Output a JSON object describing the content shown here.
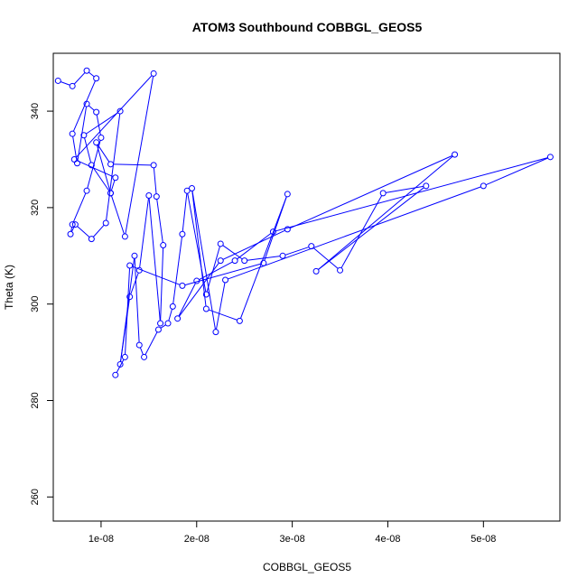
{
  "chart_data": {
    "type": "line",
    "title": "ATOM3 Southbound COBBGL_GEOS5",
    "xlabel": "COBBGL_GEOS5",
    "ylabel": "Theta (K)",
    "xlim": [
      5e-09,
      5.8e-08
    ],
    "ylim": [
      255,
      352
    ],
    "xticks": [
      1e-08,
      2e-08,
      3e-08,
      4e-08,
      5e-08
    ],
    "xtick_labels": [
      "1e-08",
      "2e-08",
      "3e-08",
      "4e-08",
      "5e-08"
    ],
    "yticks": [
      260,
      280,
      300,
      320,
      340
    ],
    "ytick_labels": [
      "260",
      "280",
      "300",
      "320",
      "340"
    ],
    "grid": false,
    "legend": "none",
    "series": [
      {
        "color": "#0000ff",
        "marker": "open-circle",
        "x": [
          5.5e-09,
          7e-09,
          8.5e-09,
          9.5e-09,
          7e-09,
          7.5e-09,
          8.5e-09,
          9.5e-09,
          1e-08,
          8.5e-09,
          7e-09,
          6.8e-09,
          7.3e-09,
          9e-09,
          1.05e-08,
          1.2e-08,
          8.2e-09,
          9e-09,
          1.1e-08,
          1.15e-08,
          7.2e-09,
          1.55e-08,
          1.25e-08,
          1.1e-08,
          9.5e-09,
          1.1e-08,
          1.55e-08,
          1.58e-08,
          1.65e-08,
          1.62e-08,
          1.5e-08,
          1.4e-08,
          1.3e-08,
          1.2e-08,
          1.35e-08,
          1.4e-08,
          1.45e-08,
          1.6e-08,
          1.7e-08,
          1.75e-08,
          1.85e-08,
          1.9e-08,
          2.1e-08,
          2.25e-08,
          2.5e-08,
          2.9e-08,
          3.2e-08,
          3.5e-08,
          3.95e-08,
          4.4e-08,
          3.25e-08,
          4.7e-08,
          2.95e-08,
          2.25e-08,
          1.8e-08,
          2e-08,
          2.4e-08,
          2.8e-08,
          5.7e-08,
          5e-08,
          2.3e-08,
          2.2e-08,
          1.95e-08,
          2.1e-08,
          2.45e-08,
          2.95e-08,
          2.7e-08,
          1.85e-08,
          1.3e-08,
          1.25e-08,
          1.15e-08
        ],
        "y": [
          346.3,
          345.2,
          348.4,
          346.8,
          335.3,
          329.2,
          341.5,
          339.8,
          334.5,
          323.5,
          316.5,
          314.5,
          316.5,
          313.5,
          316.8,
          340.0,
          335.0,
          328.8,
          323.0,
          326.2,
          330.0,
          347.8,
          314.0,
          323.0,
          333.5,
          329.0,
          328.8,
          322.3,
          312.2,
          296.0,
          322.5,
          307.0,
          301.5,
          287.5,
          310.0,
          291.5,
          289.0,
          294.7,
          296.0,
          299.5,
          314.5,
          323.5,
          302.0,
          312.5,
          309.0,
          310.0,
          312.0,
          307.0,
          323.0,
          324.5,
          306.8,
          331.0,
          315.5,
          309.0,
          297.0,
          304.8,
          309.0,
          315.0,
          330.5,
          324.5,
          305.0,
          294.2,
          324.0,
          299.0,
          296.5,
          322.8,
          308.5,
          303.8,
          308.0,
          289.0,
          285.3
        ]
      }
    ]
  }
}
